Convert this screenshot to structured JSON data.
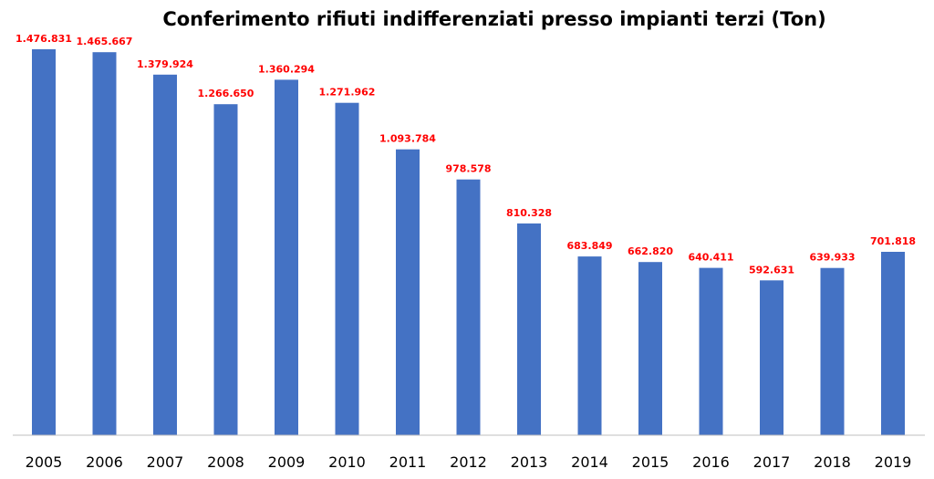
{
  "chart_data": {
    "type": "bar",
    "title": "Conferimento rifiuti indifferenziati presso impianti terzi (Ton)",
    "xlabel": "",
    "ylabel": "",
    "categories": [
      "2005",
      "2006",
      "2007",
      "2008",
      "2009",
      "2010",
      "2011",
      "2012",
      "2013",
      "2014",
      "2015",
      "2016",
      "2017",
      "2018",
      "2019"
    ],
    "values": [
      1476831,
      1465667,
      1379924,
      1266650,
      1360294,
      1271962,
      1093784,
      978578,
      810328,
      683849,
      662820,
      640411,
      592631,
      639933,
      701818
    ],
    "data_labels": [
      "1.476.831",
      "1.465.667",
      "1.379.924",
      "1.266.650",
      "1.360.294",
      "1.271.962",
      "1.093.784",
      "978.578",
      "810.328",
      "683.849",
      "662.820",
      "640.411",
      "592.631",
      "639.933",
      "701.818"
    ],
    "ylim": [
      0,
      1476831
    ],
    "grid": false,
    "legend": "none",
    "colors": {
      "bar": "#4472C4",
      "data_label": "#FF0000",
      "axis": "#BFBFBF"
    }
  }
}
